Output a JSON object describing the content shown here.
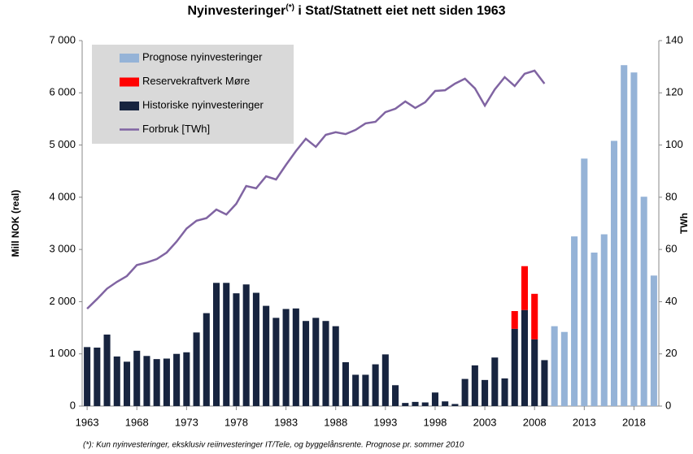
{
  "chart_data": {
    "type": "bar",
    "title": "Nyinvesteringer",
    "title_superscript": "(*)",
    "title_rest": " i Stat/Statnett eiet nett siden 1963",
    "y_label": "Mill NOK (real)",
    "y2_label": "TWh",
    "footnote": "(*): Kun nyinvesteringer, eksklusiv reiinvesteringer IT/Tele, og byggelånsrente. Prognose pr. sommer 2010",
    "categories": [
      "1963",
      null,
      null,
      null,
      null,
      "1968",
      null,
      null,
      null,
      null,
      "1973",
      null,
      null,
      null,
      null,
      "1978",
      null,
      null,
      null,
      null,
      "1983",
      null,
      null,
      null,
      null,
      "1988",
      null,
      null,
      null,
      null,
      "1993",
      null,
      null,
      null,
      null,
      "1998",
      null,
      null,
      null,
      null,
      "2003",
      null,
      null,
      null,
      null,
      "2008",
      null,
      null,
      null,
      null,
      "2013",
      null,
      null,
      null,
      null,
      "2018",
      null,
      null
    ],
    "series": [
      {
        "name": "Prognose nyinvesteringer",
        "type": "bar",
        "color": "#95b3d7",
        "values": [
          null,
          null,
          null,
          null,
          null,
          null,
          null,
          null,
          null,
          null,
          null,
          null,
          null,
          null,
          null,
          null,
          null,
          null,
          null,
          null,
          null,
          null,
          null,
          null,
          null,
          null,
          null,
          null,
          null,
          null,
          null,
          null,
          null,
          null,
          null,
          null,
          null,
          null,
          null,
          null,
          null,
          null,
          null,
          null,
          null,
          null,
          null,
          1530,
          1420,
          3250,
          4740,
          2940,
          3290,
          5080,
          6530,
          6390,
          4010,
          2500
        ]
      },
      {
        "name": "Reservekraftverk Møre",
        "type": "bar",
        "color": "#ff0000",
        "values": [
          null,
          null,
          null,
          null,
          null,
          null,
          null,
          null,
          null,
          null,
          null,
          null,
          null,
          null,
          null,
          null,
          null,
          null,
          null,
          null,
          null,
          null,
          null,
          null,
          null,
          null,
          null,
          null,
          null,
          null,
          null,
          null,
          null,
          null,
          null,
          null,
          null,
          null,
          null,
          null,
          null,
          null,
          null,
          340,
          840,
          870,
          null,
          null,
          null,
          null,
          null,
          null,
          null,
          null,
          null,
          null,
          null,
          null
        ]
      },
      {
        "name": "Historiske nyinvesteringer",
        "type": "bar",
        "color": "#17243f",
        "values": [
          1130,
          1120,
          1370,
          950,
          850,
          1060,
          960,
          900,
          910,
          1000,
          1030,
          1410,
          1780,
          2360,
          2360,
          2160,
          2330,
          2170,
          1920,
          1690,
          1860,
          1870,
          1630,
          1690,
          1630,
          1530,
          840,
          600,
          600,
          800,
          990,
          400,
          60,
          80,
          70,
          260,
          90,
          40,
          520,
          780,
          500,
          930,
          530,
          1480,
          1840,
          1280,
          880,
          null,
          null,
          null,
          null,
          null,
          null,
          null,
          null,
          null,
          null,
          null
        ]
      },
      {
        "name": "Forbruk [TWh]",
        "type": "line",
        "axis": "y2",
        "color": "#8064a2",
        "values": [
          37.3,
          41,
          45,
          47.6,
          49.8,
          54,
          55,
          56.3,
          58.8,
          63,
          68,
          71,
          72,
          75.3,
          73.4,
          77.5,
          84.3,
          83.4,
          88,
          86.8,
          92.4,
          97.7,
          102.4,
          99.3,
          103.9,
          104.9,
          104.2,
          105.8,
          108.3,
          108.9,
          112.6,
          113.9,
          116.7,
          114.2,
          116.4,
          120.7,
          121,
          123.5,
          125.4,
          121.7,
          115.1,
          121.3,
          126,
          122.6,
          127.3,
          128.5,
          123.5,
          null,
          null,
          null,
          null,
          null,
          null,
          null,
          null,
          null,
          null,
          null
        ]
      }
    ],
    "ylim": [
      0,
      7000
    ],
    "yticks": [
      0,
      {
        "value": 1000,
        "label": "1 000"
      },
      {
        "value": 2000,
        "label": "2 000"
      },
      {
        "value": 3000,
        "label": "3 000"
      },
      {
        "value": 4000,
        "label": "4 000"
      },
      {
        "value": 5000,
        "label": "5 000"
      },
      {
        "value": 6000,
        "label": "6 000"
      },
      {
        "value": 7000,
        "label": "7 000"
      }
    ],
    "y2lim": [
      0,
      140
    ],
    "y2ticks": [
      0,
      20,
      40,
      60,
      80,
      100,
      120,
      140
    ],
    "legend": "upper left"
  }
}
